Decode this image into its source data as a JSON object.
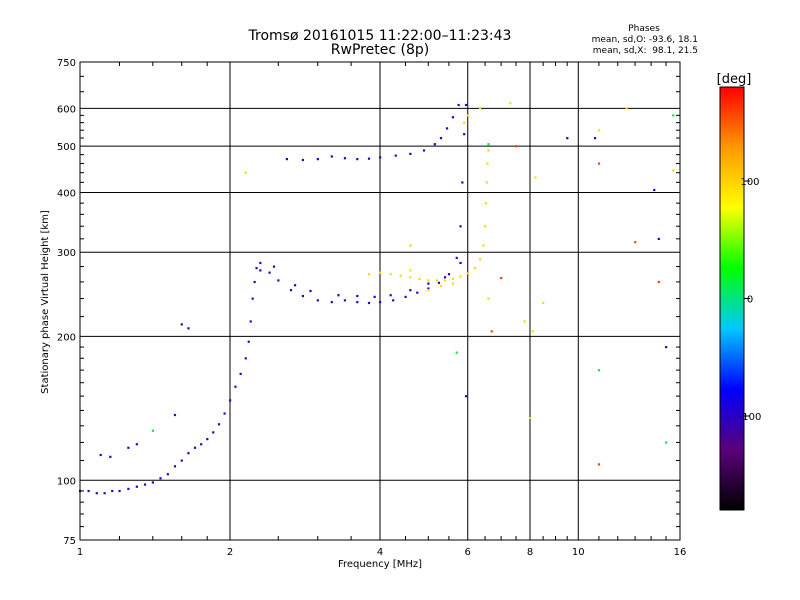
{
  "chart_data": {
    "type": "scatter",
    "title": "Tromsø 20161015 11:22:00–11:23:43",
    "subtitle": "RwPretec (8p)",
    "xlabel": "Frequency [MHz]",
    "ylabel": "Stationary phase Virtual Height [km]",
    "x_scale": "log",
    "y_scale": "log",
    "xlim": [
      1,
      16
    ],
    "ylim": [
      75,
      750
    ],
    "x_ticks": [
      1,
      2,
      4,
      6,
      8,
      10,
      16
    ],
    "y_ticks": [
      75,
      100,
      200,
      300,
      400,
      500,
      600,
      750
    ],
    "grid": true,
    "phase_info": {
      "heading": "Phases",
      "line_o": "mean, sd,O: -93.6, 18.1",
      "line_x": "mean, sd,X:  98.1, 21.5"
    },
    "colorbar": {
      "label": "[deg]",
      "range": [
        -180,
        180
      ],
      "ticks": [
        100,
        0,
        -100
      ],
      "colors": [
        "#000000",
        "#5a007a",
        "#0000ff",
        "#00c8ff",
        "#00ff00",
        "#ffff00",
        "#ff9900",
        "#ff0000"
      ]
    },
    "series": [
      {
        "phase_deg": -105,
        "points": [
          [
            1.0,
            95
          ],
          [
            1.04,
            95
          ],
          [
            1.08,
            94
          ],
          [
            1.12,
            94
          ],
          [
            1.16,
            95
          ],
          [
            1.2,
            95
          ],
          [
            1.25,
            96
          ],
          [
            1.3,
            97
          ],
          [
            1.35,
            98
          ],
          [
            1.4,
            99
          ],
          [
            1.45,
            101
          ],
          [
            1.5,
            103
          ],
          [
            1.55,
            107
          ],
          [
            1.6,
            110
          ],
          [
            1.65,
            114
          ],
          [
            1.7,
            117
          ],
          [
            1.75,
            119
          ],
          [
            1.8,
            122
          ],
          [
            1.85,
            126
          ],
          [
            1.9,
            131
          ],
          [
            1.95,
            138
          ],
          [
            2.0,
            147
          ],
          [
            2.05,
            157
          ],
          [
            2.1,
            167
          ],
          [
            2.15,
            180
          ],
          [
            2.18,
            195
          ],
          [
            2.2,
            215
          ],
          [
            2.22,
            240
          ],
          [
            2.24,
            260
          ],
          [
            2.26,
            278
          ],
          [
            2.3,
            285
          ],
          [
            2.4,
            272
          ],
          [
            2.5,
            262
          ],
          [
            2.65,
            250
          ],
          [
            2.8,
            243
          ],
          [
            3.0,
            238
          ],
          [
            3.2,
            236
          ],
          [
            3.4,
            238
          ],
          [
            3.6,
            236
          ],
          [
            3.8,
            235
          ],
          [
            4.0,
            236
          ],
          [
            4.25,
            238
          ],
          [
            4.5,
            242
          ],
          [
            4.75,
            247
          ],
          [
            5.0,
            252
          ],
          [
            5.25,
            259
          ],
          [
            5.5,
            270
          ],
          [
            5.7,
            292
          ],
          [
            5.8,
            340
          ],
          [
            5.85,
            420
          ],
          [
            5.9,
            530
          ],
          [
            5.95,
            610
          ],
          [
            1.1,
            113
          ],
          [
            1.15,
            112
          ],
          [
            1.25,
            117
          ],
          [
            1.3,
            119
          ],
          [
            1.55,
            137
          ],
          [
            1.6,
            212
          ],
          [
            1.65,
            208
          ],
          [
            5.95,
            150
          ],
          [
            14.5,
            320
          ],
          [
            15.0,
            190
          ]
        ]
      },
      {
        "phase_deg": -98,
        "points": [
          [
            2.6,
            470
          ],
          [
            2.8,
            468
          ],
          [
            3.0,
            470
          ],
          [
            3.2,
            476
          ],
          [
            3.4,
            472
          ],
          [
            3.6,
            470
          ],
          [
            3.8,
            471
          ],
          [
            4.0,
            474
          ],
          [
            4.3,
            478
          ],
          [
            4.6,
            482
          ],
          [
            4.9,
            490
          ],
          [
            5.15,
            505
          ],
          [
            5.3,
            520
          ],
          [
            5.45,
            545
          ],
          [
            5.6,
            575
          ],
          [
            5.75,
            610
          ],
          [
            2.3,
            275
          ],
          [
            2.45,
            280
          ],
          [
            2.7,
            256
          ],
          [
            2.9,
            249
          ],
          [
            3.3,
            244
          ],
          [
            3.6,
            243
          ],
          [
            3.9,
            242
          ],
          [
            4.2,
            244
          ],
          [
            4.6,
            250
          ],
          [
            5.0,
            258
          ],
          [
            5.4,
            266
          ],
          [
            5.8,
            285
          ],
          [
            9.5,
            520
          ],
          [
            10.8,
            520
          ],
          [
            14.2,
            405
          ]
        ]
      },
      {
        "phase_deg": 97,
        "points": [
          [
            3.8,
            270
          ],
          [
            4.0,
            272
          ],
          [
            4.2,
            270
          ],
          [
            4.4,
            268
          ],
          [
            4.6,
            266
          ],
          [
            4.8,
            264
          ],
          [
            5.0,
            262
          ],
          [
            5.2,
            262
          ],
          [
            5.4,
            262
          ],
          [
            5.6,
            264
          ],
          [
            5.8,
            267
          ],
          [
            6.0,
            271
          ],
          [
            6.2,
            278
          ],
          [
            6.35,
            290
          ],
          [
            6.45,
            310
          ],
          [
            6.5,
            340
          ],
          [
            6.52,
            380
          ],
          [
            6.55,
            420
          ],
          [
            6.57,
            460
          ],
          [
            6.6,
            490
          ],
          [
            5.0,
            250
          ],
          [
            5.3,
            255
          ],
          [
            5.6,
            258
          ],
          [
            4.6,
            275
          ],
          [
            5.9,
            560
          ],
          [
            6.0,
            580
          ],
          [
            6.35,
            600
          ],
          [
            7.3,
            615
          ],
          [
            8.2,
            430
          ],
          [
            8.5,
            235
          ],
          [
            11.0,
            540
          ],
          [
            12.5,
            600
          ],
          [
            15.5,
            445
          ]
        ]
      },
      {
        "phase_deg": 60,
        "points": [
          [
            6.6,
            240
          ],
          [
            7.8,
            215
          ],
          [
            8.1,
            205
          ],
          [
            8.0,
            135
          ],
          [
            2.15,
            440
          ],
          [
            4.6,
            310
          ]
        ]
      },
      {
        "phase_deg": 160,
        "points": [
          [
            7.0,
            265
          ],
          [
            7.5,
            500
          ],
          [
            6.7,
            205
          ],
          [
            11.0,
            460
          ],
          [
            11.0,
            108
          ],
          [
            14.5,
            260
          ],
          [
            13.0,
            315
          ]
        ]
      },
      {
        "phase_deg": 10,
        "points": [
          [
            1.4,
            127
          ],
          [
            5.7,
            185
          ],
          [
            6.6,
            505
          ],
          [
            15.5,
            580
          ],
          [
            15.0,
            120
          ],
          [
            11.0,
            170
          ]
        ]
      }
    ]
  }
}
